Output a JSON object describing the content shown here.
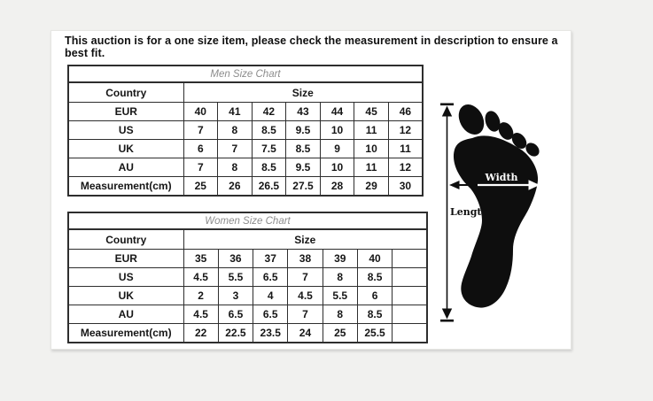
{
  "colors": {
    "page_bg": "#f1f1ef",
    "card_bg": "#ffffff",
    "table_border": "#2e2e2e",
    "chart_title_text": "#8d8d8d",
    "table_text": "#161616",
    "foot_silhouette": "#0e0e0e"
  },
  "notice": "This auction is for a one size item, please check the measurement in description to ensure a best fit.",
  "men_chart": {
    "title": "Men Size Chart",
    "country_header": "Country",
    "size_header": "Size",
    "rows": [
      {
        "label": "EUR",
        "values": [
          "40",
          "41",
          "42",
          "43",
          "44",
          "45",
          "46"
        ]
      },
      {
        "label": "US",
        "values": [
          "7",
          "8",
          "8.5",
          "9.5",
          "10",
          "11",
          "12"
        ]
      },
      {
        "label": "UK",
        "values": [
          "6",
          "7",
          "7.5",
          "8.5",
          "9",
          "10",
          "11"
        ]
      },
      {
        "label": "AU",
        "values": [
          "7",
          "8",
          "8.5",
          "9.5",
          "10",
          "11",
          "12"
        ]
      },
      {
        "label": "Measurement(cm)",
        "values": [
          "25",
          "26",
          "26.5",
          "27.5",
          "28",
          "29",
          "30"
        ]
      }
    ]
  },
  "women_chart": {
    "title": "Women Size Chart",
    "country_header": "Country",
    "size_header": "Size",
    "rows": [
      {
        "label": "EUR",
        "values": [
          "35",
          "36",
          "37",
          "38",
          "39",
          "40",
          ""
        ]
      },
      {
        "label": "US",
        "values": [
          "4.5",
          "5.5",
          "6.5",
          "7",
          "8",
          "8.5",
          ""
        ]
      },
      {
        "label": "UK",
        "values": [
          "2",
          "3",
          "4",
          "4.5",
          "5.5",
          "6",
          ""
        ]
      },
      {
        "label": "AU",
        "values": [
          "4.5",
          "6.5",
          "6.5",
          "7",
          "8",
          "8.5",
          ""
        ]
      },
      {
        "label": "Measurement(cm)",
        "values": [
          "22",
          "22.5",
          "23.5",
          "24",
          "25",
          "25.5",
          ""
        ]
      }
    ]
  },
  "foot_diagram": {
    "width_label": "Width",
    "length_label": "Length"
  }
}
